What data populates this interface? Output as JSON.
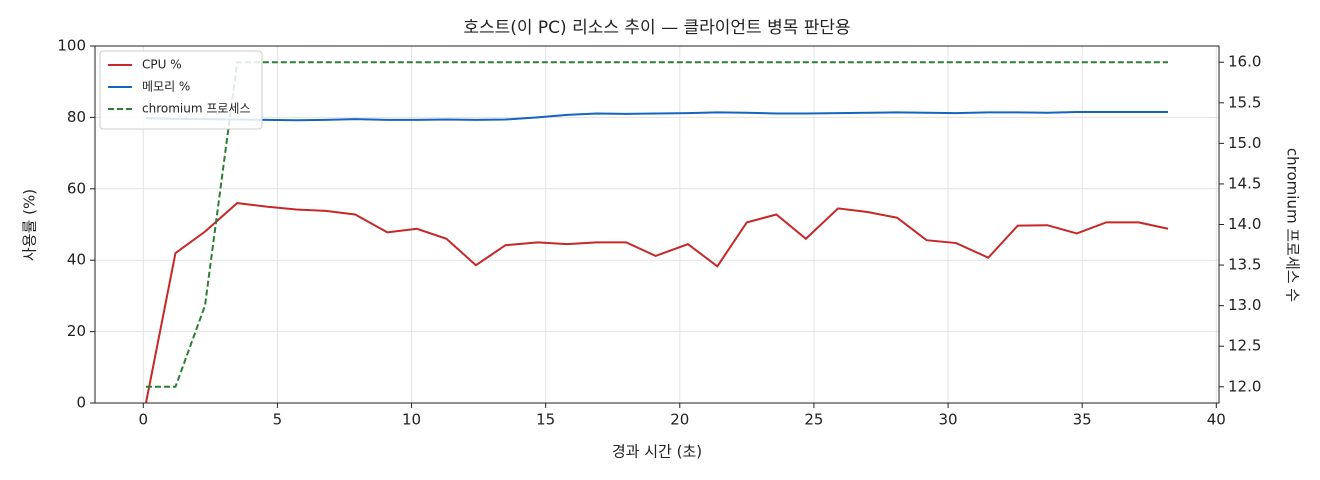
{
  "chart_data": {
    "type": "line",
    "title": "호스트(이 PC) 리소스 추이 — 클라이언트 병목 판단용",
    "xlabel": "경과 시간 (초)",
    "ylabel": "사용률 (%)",
    "y2label": "chromium 프로세스 수",
    "x": [
      0.1,
      1.2,
      2.3,
      3.5,
      4.6,
      5.7,
      6.8,
      7.9,
      9.1,
      10.2,
      11.3,
      12.4,
      13.5,
      14.7,
      15.8,
      16.9,
      18.0,
      19.1,
      20.3,
      21.4,
      22.5,
      23.6,
      24.7,
      25.9,
      27.0,
      28.1,
      29.2,
      30.3,
      31.5,
      32.6,
      33.7,
      34.8,
      35.9,
      37.1,
      38.2
    ],
    "series": [
      {
        "name": "CPU %",
        "color": "#c62828",
        "style": "solid",
        "axis": "y",
        "values": [
          0,
          42,
          48,
          56,
          55,
          54.2,
          53.8,
          52.8,
          47.8,
          48.8,
          46,
          38.6,
          44.2,
          45,
          44.5,
          45,
          45,
          41.2,
          44.5,
          38.3,
          50.6,
          52.8,
          46,
          54.5,
          53.5,
          51.9,
          45.6,
          44.8,
          40.7,
          49.7,
          49.8,
          47.5,
          50.6,
          50.6,
          48.8
        ]
      },
      {
        "name": "메모리 %",
        "color": "#1565c0",
        "style": "solid",
        "axis": "y",
        "values": [
          79.8,
          79.6,
          79.5,
          79.4,
          79.3,
          79.2,
          79.3,
          79.5,
          79.3,
          79.3,
          79.4,
          79.3,
          79.4,
          80,
          80.7,
          81.1,
          81,
          81.1,
          81.2,
          81.4,
          81.3,
          81.1,
          81.1,
          81.2,
          81.3,
          81.4,
          81.3,
          81.2,
          81.4,
          81.4,
          81.3,
          81.5,
          81.5,
          81.5,
          81.5
        ]
      },
      {
        "name": "chromium 프로세스",
        "color": "#2e7d32",
        "style": "dashed",
        "axis": "y2",
        "values": [
          12,
          12,
          13,
          16,
          16,
          16,
          16,
          16,
          16,
          16,
          16,
          16,
          16,
          16,
          16,
          16,
          16,
          16,
          16,
          16,
          16,
          16,
          16,
          16,
          16,
          16,
          16,
          16,
          16,
          16,
          16,
          16,
          16,
          16,
          16
        ]
      }
    ],
    "xlim": [
      -1.8,
      40.1
    ],
    "xticks": [
      0,
      5,
      10,
      15,
      20,
      25,
      30,
      35,
      40
    ],
    "ylim": [
      0,
      100
    ],
    "yticks": [
      0,
      20,
      40,
      60,
      80,
      100
    ],
    "y2lim": [
      11.8,
      16.2
    ],
    "y2ticks": [
      {
        "value": 12,
        "label": "12.0"
      },
      {
        "value": 12.5,
        "label": "12.5"
      },
      {
        "value": 13,
        "label": "13.0"
      },
      {
        "value": 13.5,
        "label": "13.5"
      },
      {
        "value": 14,
        "label": "14.0"
      },
      {
        "value": 14.5,
        "label": "14.5"
      },
      {
        "value": 15,
        "label": "15.0"
      },
      {
        "value": 15.5,
        "label": "15.5"
      },
      {
        "value": 16,
        "label": "16.0"
      }
    ],
    "grid": true,
    "legend": "upper-left"
  }
}
